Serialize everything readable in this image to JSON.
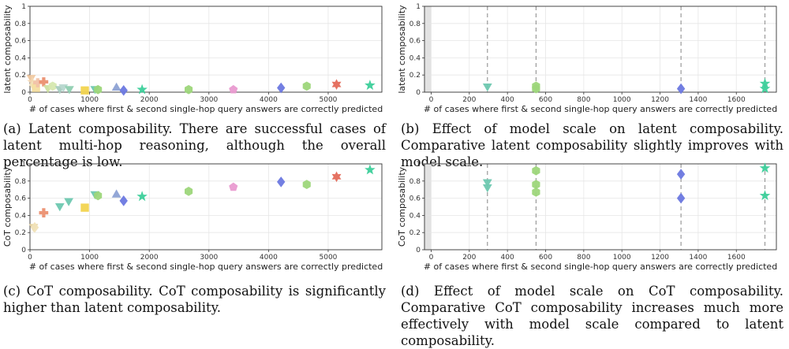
{
  "chart_data": [
    {
      "type": "scatter",
      "id": "a",
      "xlabel": "# of cases where first & second single-hop query answers are correctly predicted",
      "ylabel": "latent composability",
      "xlim": [
        0,
        5900
      ],
      "ylim": [
        0,
        1
      ],
      "xticks": [
        0,
        1000,
        2000,
        3000,
        4000,
        5000
      ],
      "yticks": [
        0,
        0.2,
        0.4,
        0.6,
        0.8,
        1
      ],
      "ytick_labels": [
        "0",
        "0.2",
        "0.4",
        "0.6",
        "0.8",
        "1"
      ],
      "grid": true,
      "points": [
        {
          "x": 20,
          "y": 0.17,
          "shape": "triangle-down",
          "color": "#f0c8a0"
        },
        {
          "x": 40,
          "y": 0.12,
          "shape": "star",
          "color": "#f3d6b0"
        },
        {
          "x": 60,
          "y": 0.08,
          "shape": "diamond",
          "color": "#f1e3b8"
        },
        {
          "x": 100,
          "y": 0.05,
          "shape": "square",
          "color": "#f4dea0"
        },
        {
          "x": 130,
          "y": 0.11,
          "shape": "plus",
          "color": "#f1c2a8"
        },
        {
          "x": 230,
          "y": 0.12,
          "shape": "plus",
          "color": "#eb9070"
        },
        {
          "x": 300,
          "y": 0.05,
          "shape": "triangle-down",
          "color": "#cde0a0"
        },
        {
          "x": 380,
          "y": 0.07,
          "shape": "hexagon",
          "color": "#d6e8b0"
        },
        {
          "x": 500,
          "y": 0.04,
          "shape": "triangle-down",
          "color": "#a8ccc0"
        },
        {
          "x": 560,
          "y": 0.06,
          "shape": "triangle-down",
          "color": "#b8d8d0"
        },
        {
          "x": 660,
          "y": 0.04,
          "shape": "triangle-down",
          "color": "#8fcfb0"
        },
        {
          "x": 920,
          "y": 0.02,
          "shape": "square",
          "color": "#f2d44f"
        },
        {
          "x": 1090,
          "y": 0.04,
          "shape": "triangle-down",
          "color": "#6ec8b0"
        },
        {
          "x": 1140,
          "y": 0.03,
          "shape": "hexagon",
          "color": "#9dd67a"
        },
        {
          "x": 1450,
          "y": 0.05,
          "shape": "triangle-up",
          "color": "#8da2d4"
        },
        {
          "x": 1570,
          "y": 0.02,
          "shape": "diamond",
          "color": "#6b78e0"
        },
        {
          "x": 1880,
          "y": 0.03,
          "shape": "star",
          "color": "#3ccf9a"
        },
        {
          "x": 2660,
          "y": 0.03,
          "shape": "hexagon",
          "color": "#9dd67a"
        },
        {
          "x": 3410,
          "y": 0.03,
          "shape": "pentagon",
          "color": "#e99ad0"
        },
        {
          "x": 4210,
          "y": 0.05,
          "shape": "diamond",
          "color": "#6b78e0"
        },
        {
          "x": 4640,
          "y": 0.07,
          "shape": "hexagon",
          "color": "#9dd67a"
        },
        {
          "x": 5140,
          "y": 0.09,
          "shape": "star6",
          "color": "#e46a5a"
        },
        {
          "x": 5700,
          "y": 0.08,
          "shape": "star",
          "color": "#3ccf9a"
        }
      ]
    },
    {
      "type": "scatter",
      "id": "b",
      "xlabel": "# of cases where first & second single-hop query answers are correctly predicted",
      "ylabel": "latent composability",
      "xlim": [
        -35,
        1810
      ],
      "ylim": [
        0,
        1
      ],
      "xticks": [
        0,
        200,
        400,
        600,
        800,
        1000,
        1200,
        1400,
        1600
      ],
      "yticks": [
        0,
        0.2,
        0.4,
        0.6,
        0.8,
        1
      ],
      "ytick_labels": [
        "0",
        "0.2",
        "0.4",
        "0.6",
        "0.8",
        "1"
      ],
      "grid": true,
      "shaded_xrange": [
        -35,
        0
      ],
      "vlines": [
        295,
        550,
        1310,
        1750
      ],
      "points": [
        {
          "x": 295,
          "y": 0.07,
          "shape": "triangle-down",
          "color": "#6ec8b0"
        },
        {
          "x": 550,
          "y": 0.07,
          "shape": "hexagon",
          "color": "#9dd67a"
        },
        {
          "x": 550,
          "y": 0.04,
          "shape": "hexagon",
          "color": "#9dd67a"
        },
        {
          "x": 1310,
          "y": 0.04,
          "shape": "diamond",
          "color": "#6b78e0"
        },
        {
          "x": 1750,
          "y": 0.1,
          "shape": "star",
          "color": "#3ccf9a"
        },
        {
          "x": 1750,
          "y": 0.04,
          "shape": "star",
          "color": "#3ccf9a"
        }
      ]
    },
    {
      "type": "scatter",
      "id": "c",
      "xlabel": "# of cases where first & second single-hop query answers are correctly predicted",
      "ylabel": "CoT composability",
      "xlim": [
        0,
        5900
      ],
      "ylim": [
        0,
        1
      ],
      "xticks": [
        0,
        1000,
        2000,
        3000,
        4000,
        5000
      ],
      "yticks": [
        0,
        0.2,
        0.4,
        0.6,
        0.8,
        1
      ],
      "ytick_labels": [
        "0",
        "0.2",
        "0.4",
        "0.6",
        "0.8",
        "1"
      ],
      "grid": true,
      "points": [
        {
          "x": 60,
          "y": 0.27,
          "shape": "triangle-down",
          "color": "#e6d3a0"
        },
        {
          "x": 80,
          "y": 0.26,
          "shape": "diamond",
          "color": "#f1e3b8"
        },
        {
          "x": 230,
          "y": 0.43,
          "shape": "plus",
          "color": "#eb9070"
        },
        {
          "x": 500,
          "y": 0.51,
          "shape": "triangle-down",
          "color": "#6ec8b0"
        },
        {
          "x": 650,
          "y": 0.57,
          "shape": "triangle-down",
          "color": "#6ec8b0"
        },
        {
          "x": 920,
          "y": 0.49,
          "shape": "square",
          "color": "#f2d44f"
        },
        {
          "x": 1090,
          "y": 0.65,
          "shape": "triangle-down",
          "color": "#6ec8b0"
        },
        {
          "x": 1140,
          "y": 0.63,
          "shape": "hexagon",
          "color": "#9dd67a"
        },
        {
          "x": 1450,
          "y": 0.64,
          "shape": "triangle-up",
          "color": "#8da2d4"
        },
        {
          "x": 1570,
          "y": 0.57,
          "shape": "diamond",
          "color": "#6b78e0"
        },
        {
          "x": 1880,
          "y": 0.62,
          "shape": "star",
          "color": "#3ccf9a"
        },
        {
          "x": 2660,
          "y": 0.68,
          "shape": "hexagon",
          "color": "#9dd67a"
        },
        {
          "x": 3410,
          "y": 0.73,
          "shape": "pentagon",
          "color": "#e99ad0"
        },
        {
          "x": 4210,
          "y": 0.79,
          "shape": "diamond",
          "color": "#6b78e0"
        },
        {
          "x": 4640,
          "y": 0.76,
          "shape": "hexagon",
          "color": "#9dd67a"
        },
        {
          "x": 5140,
          "y": 0.85,
          "shape": "star6",
          "color": "#e46a5a"
        },
        {
          "x": 5700,
          "y": 0.93,
          "shape": "star",
          "color": "#3ccf9a"
        }
      ]
    },
    {
      "type": "scatter",
      "id": "d",
      "xlabel": "# of cases where first & second single-hop query answers are correctly predicted",
      "ylabel": "CoT composability",
      "xlim": [
        -35,
        1810
      ],
      "ylim": [
        0,
        1
      ],
      "xticks": [
        0,
        200,
        400,
        600,
        800,
        1000,
        1200,
        1400,
        1600
      ],
      "yticks": [
        0,
        0.2,
        0.4,
        0.6,
        0.8,
        1
      ],
      "ytick_labels": [
        "0",
        "0.2",
        "0.4",
        "0.6",
        "0.8",
        "1"
      ],
      "grid": true,
      "shaded_xrange": [
        -35,
        0
      ],
      "vlines": [
        295,
        550,
        1310,
        1750
      ],
      "points": [
        {
          "x": 295,
          "y": 0.79,
          "shape": "triangle-down",
          "color": "#6ec8b0"
        },
        {
          "x": 295,
          "y": 0.73,
          "shape": "triangle-down",
          "color": "#6ec8b0"
        },
        {
          "x": 550,
          "y": 0.92,
          "shape": "hexagon",
          "color": "#9dd67a"
        },
        {
          "x": 550,
          "y": 0.76,
          "shape": "hexagon",
          "color": "#9dd67a"
        },
        {
          "x": 550,
          "y": 0.67,
          "shape": "hexagon",
          "color": "#9dd67a"
        },
        {
          "x": 1310,
          "y": 0.88,
          "shape": "diamond",
          "color": "#6b78e0"
        },
        {
          "x": 1310,
          "y": 0.6,
          "shape": "diamond",
          "color": "#6b78e0"
        },
        {
          "x": 1750,
          "y": 0.95,
          "shape": "star",
          "color": "#3ccf9a"
        },
        {
          "x": 1750,
          "y": 0.63,
          "shape": "star",
          "color": "#3ccf9a"
        }
      ]
    }
  ],
  "captions": {
    "a": "(a) Latent composability. There are successful cases of latent multi-hop reasoning, although the overall percentage is low.",
    "b": "(b) Effect of model scale on latent composability. Comparative latent composability slightly improves with model scale.",
    "c": "(c) CoT composability. CoT composability is significantly higher than latent composability.",
    "d": "(d) Effect of model scale on CoT composability. Comparative CoT composability increases much more effectively with model scale compared to latent composability."
  }
}
